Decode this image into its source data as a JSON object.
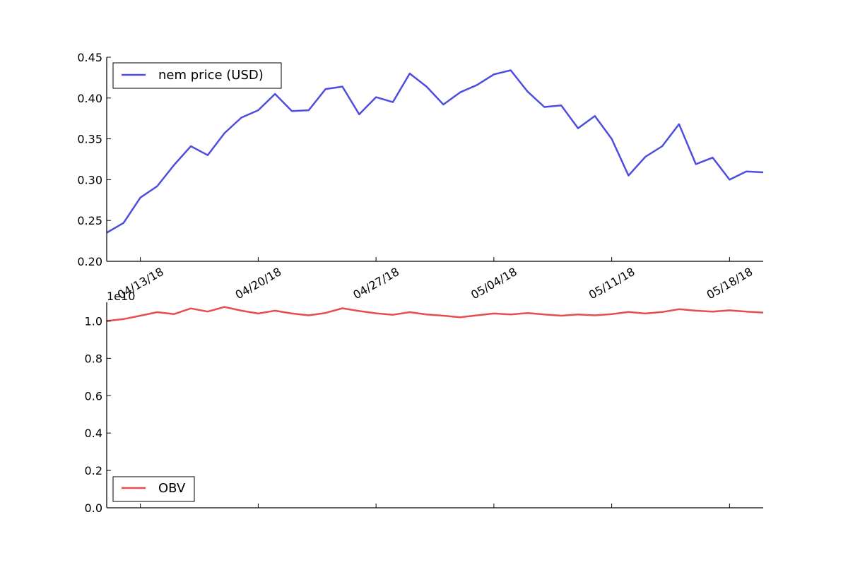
{
  "chart_data": [
    {
      "type": "line",
      "title": "",
      "xlabel": "",
      "ylabel": "",
      "ylim": [
        0.2,
        0.45
      ],
      "yticks": [
        "0.20",
        "0.25",
        "0.30",
        "0.35",
        "0.40",
        "0.45"
      ],
      "x_tick_labels": [
        "04/13/18",
        "04/20/18",
        "04/27/18",
        "05/04/18",
        "05/11/18",
        "05/18/18"
      ],
      "x": [
        "2018-04-11",
        "2018-04-12",
        "2018-04-13",
        "2018-04-14",
        "2018-04-15",
        "2018-04-16",
        "2018-04-17",
        "2018-04-18",
        "2018-04-19",
        "2018-04-20",
        "2018-04-21",
        "2018-04-22",
        "2018-04-23",
        "2018-04-24",
        "2018-04-25",
        "2018-04-26",
        "2018-04-27",
        "2018-04-28",
        "2018-04-29",
        "2018-04-30",
        "2018-05-01",
        "2018-05-02",
        "2018-05-03",
        "2018-05-04",
        "2018-05-05",
        "2018-05-06",
        "2018-05-07",
        "2018-05-08",
        "2018-05-09",
        "2018-05-10",
        "2018-05-11",
        "2018-05-12",
        "2018-05-13",
        "2018-05-14",
        "2018-05-15",
        "2018-05-16",
        "2018-05-17",
        "2018-05-18",
        "2018-05-19",
        "2018-05-20"
      ],
      "legend_position": "top-left",
      "grid": false,
      "series": [
        {
          "name": "nem price (USD)",
          "color": "#4d4ddf",
          "values": [
            0.235,
            0.247,
            0.278,
            0.292,
            0.318,
            0.341,
            0.33,
            0.357,
            0.376,
            0.385,
            0.405,
            0.384,
            0.385,
            0.411,
            0.414,
            0.38,
            0.401,
            0.395,
            0.43,
            0.414,
            0.392,
            0.407,
            0.416,
            0.429,
            0.434,
            0.408,
            0.389,
            0.391,
            0.363,
            0.378,
            0.35,
            0.305,
            0.328,
            0.341,
            0.368,
            0.319,
            0.327,
            0.3,
            0.31,
            0.309
          ]
        }
      ]
    },
    {
      "type": "line",
      "title": "",
      "xlabel": "",
      "ylabel": "",
      "offset_text": "1e10",
      "ylim": [
        0.0,
        1.1
      ],
      "yticks": [
        "0.0",
        "0.2",
        "0.4",
        "0.6",
        "0.8",
        "1.0"
      ],
      "x": [
        "2018-04-11",
        "2018-04-12",
        "2018-04-13",
        "2018-04-14",
        "2018-04-15",
        "2018-04-16",
        "2018-04-17",
        "2018-04-18",
        "2018-04-19",
        "2018-04-20",
        "2018-04-21",
        "2018-04-22",
        "2018-04-23",
        "2018-04-24",
        "2018-04-25",
        "2018-04-26",
        "2018-04-27",
        "2018-04-28",
        "2018-04-29",
        "2018-04-30",
        "2018-05-01",
        "2018-05-02",
        "2018-05-03",
        "2018-05-04",
        "2018-05-05",
        "2018-05-06",
        "2018-05-07",
        "2018-05-08",
        "2018-05-09",
        "2018-05-10",
        "2018-05-11",
        "2018-05-12",
        "2018-05-13",
        "2018-05-14",
        "2018-05-15",
        "2018-05-16",
        "2018-05-17",
        "2018-05-18",
        "2018-05-19",
        "2018-05-20"
      ],
      "legend_position": "bottom-left",
      "grid": false,
      "series": [
        {
          "name": "OBV",
          "color": "#e84d4d",
          "values": [
            1.0,
            1.01,
            1.028,
            1.047,
            1.037,
            1.067,
            1.05,
            1.075,
            1.055,
            1.04,
            1.055,
            1.04,
            1.03,
            1.043,
            1.068,
            1.053,
            1.041,
            1.033,
            1.047,
            1.035,
            1.028,
            1.02,
            1.03,
            1.04,
            1.035,
            1.042,
            1.035,
            1.028,
            1.035,
            1.03,
            1.037,
            1.048,
            1.04,
            1.048,
            1.063,
            1.055,
            1.05,
            1.057,
            1.05,
            1.045
          ]
        }
      ]
    }
  ]
}
